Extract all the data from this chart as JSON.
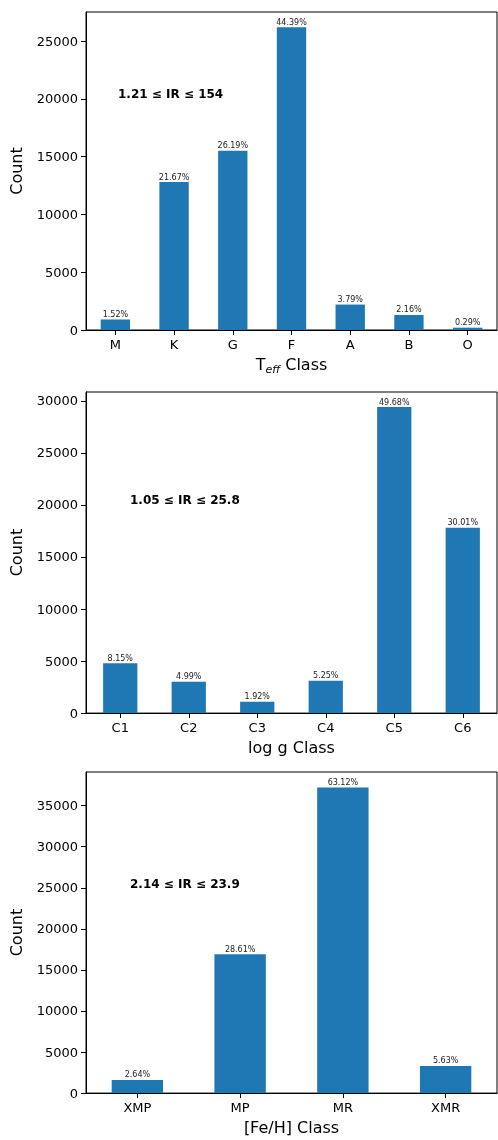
{
  "chart_data": [
    {
      "type": "bar",
      "xlabel": "T$_{eff}$ Class",
      "ylabel": "Count",
      "categories": [
        "M",
        "K",
        "G",
        "F",
        "A",
        "B",
        "O"
      ],
      "values": [
        900,
        12800,
        15500,
        26200,
        2200,
        1300,
        200
      ],
      "color": "#1f77b4",
      "ylim": [
        0,
        27510
      ],
      "yticks": [
        0,
        5000,
        10000,
        15000,
        20000,
        25000
      ],
      "grid": false,
      "annotations": [
        "1.21 ≤ IR ≤ 154",
        {
          "text": "1.52%",
          "x": "M",
          "y": 900
        },
        {
          "text": "21.67%",
          "x": "K",
          "y": 12800
        },
        {
          "text": "26.19%",
          "x": "G",
          "y": 15500
        },
        {
          "text": "44.39%",
          "x": "F",
          "y": 26200
        },
        {
          "text": "3.79%",
          "x": "A",
          "y": 2200
        },
        {
          "text": "2.16%",
          "x": "B",
          "y": 1300
        },
        {
          "text": "0.29%",
          "x": "O",
          "y": 200
        }
      ]
    },
    {
      "type": "bar",
      "xlabel": "log g Class",
      "ylabel": "Count",
      "categories": [
        "C1",
        "C2",
        "C3",
        "C4",
        "C5",
        "C6"
      ],
      "values": [
        4800,
        3000,
        1100,
        3100,
        29400,
        17800
      ],
      "color": "#1f77b4",
      "ylim": [
        0,
        30850
      ],
      "yticks": [
        0,
        5000,
        10000,
        15000,
        20000,
        25000,
        30000
      ],
      "grid": false,
      "annotations": [
        "1.05 ≤ IR ≤ 25.8",
        {
          "text": "8.15%",
          "x": "C1",
          "y": 4800
        },
        {
          "text": "4.99%",
          "x": "C2",
          "y": 3000
        },
        {
          "text": "1.92%",
          "x": "C3",
          "y": 1100
        },
        {
          "text": "5.25%",
          "x": "C4",
          "y": 3100
        },
        {
          "text": "49.68%",
          "x": "C5",
          "y": 29400
        },
        {
          "text": "30.01%",
          "x": "C6",
          "y": 17800
        }
      ]
    },
    {
      "type": "bar",
      "xlabel": "[Fe/H] Class",
      "ylabel": "Count",
      "categories": [
        "XMP",
        "MP",
        "MR",
        "XMR"
      ],
      "values": [
        1600,
        16900,
        37200,
        3300
      ],
      "color": "#1f77b4",
      "ylim": [
        0,
        39100
      ],
      "yticks": [
        0,
        5000,
        10000,
        15000,
        20000,
        25000,
        30000,
        35000
      ],
      "grid": false,
      "annotations": [
        "2.14 ≤ IR ≤ 23.9",
        {
          "text": "2.64%",
          "x": "XMP",
          "y": 1600
        },
        {
          "text": "28.61%",
          "x": "MP",
          "y": 16900
        },
        {
          "text": "63.12%",
          "x": "MR",
          "y": 37200
        },
        {
          "text": "5.63%",
          "x": "XMR",
          "y": 3300
        }
      ]
    }
  ]
}
